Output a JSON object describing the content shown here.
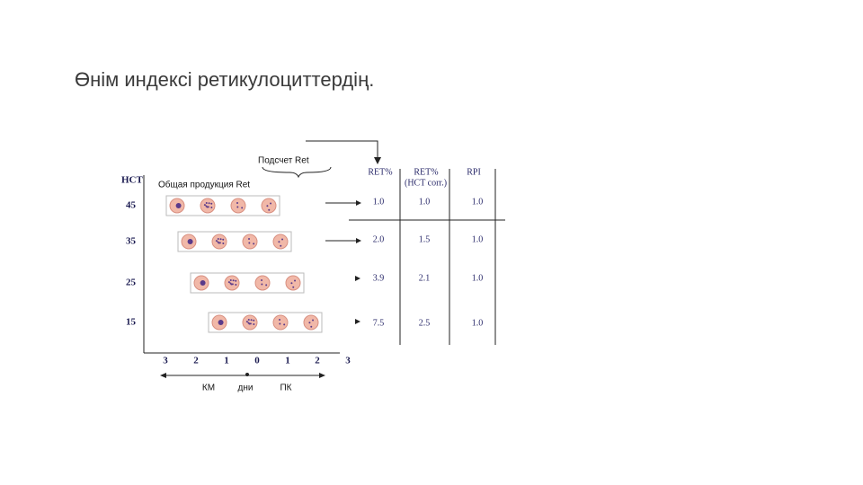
{
  "title": "Өнім индексі ретикулоциттердің.",
  "diagram": {
    "count_label": "Подсчет Ret",
    "production_label": "Общая продукция Ret",
    "y_axis_label": "HCT",
    "hct_levels": [
      "45",
      "35",
      "25",
      "15"
    ],
    "x_ticks": [
      "3",
      "2",
      "1",
      "0",
      "1",
      "2",
      "3"
    ],
    "x_axis_labels": [
      "КМ",
      "дни",
      "ПК"
    ]
  },
  "table": {
    "headers": [
      "RET%",
      "RET%",
      "RPI"
    ],
    "header_note": "(HCT corr.)",
    "rows": [
      [
        "1.0",
        "1.0",
        "1.0"
      ],
      [
        "2.0",
        "1.5",
        "1.0"
      ],
      [
        "3.9",
        "2.1",
        "1.0"
      ],
      [
        "7.5",
        "2.5",
        "1.0"
      ]
    ]
  }
}
